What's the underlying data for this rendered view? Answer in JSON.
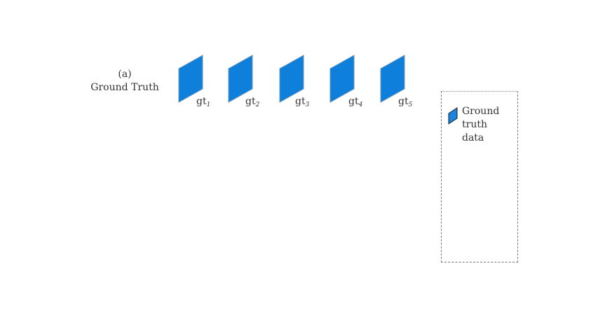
{
  "row_label": {
    "line1": "(a)",
    "line2": "Ground Truth"
  },
  "frames": [
    {
      "base": "gt",
      "sub": "1"
    },
    {
      "base": "gt",
      "sub": "2"
    },
    {
      "base": "gt",
      "sub": "3"
    },
    {
      "base": "gt",
      "sub": "4"
    },
    {
      "base": "gt",
      "sub": "5"
    }
  ],
  "legend": {
    "lines": [
      "Ground",
      "truth",
      "data"
    ]
  },
  "colors": {
    "frame_fill": "#0f7fdc",
    "frame_stroke": "#6e96b8",
    "legend_swatch_fill": "#1a84de",
    "legend_swatch_stroke": "#1a1a1a"
  }
}
